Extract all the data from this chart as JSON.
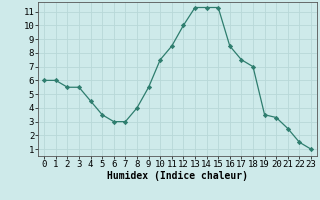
{
  "x": [
    0,
    1,
    2,
    3,
    4,
    5,
    6,
    7,
    8,
    9,
    10,
    11,
    12,
    13,
    14,
    15,
    16,
    17,
    18,
    19,
    20,
    21,
    22,
    23
  ],
  "y": [
    6,
    6,
    5.5,
    5.5,
    4.5,
    3.5,
    3,
    3,
    4,
    5.5,
    7.5,
    8.5,
    10,
    11.3,
    11.3,
    11.3,
    8.5,
    7.5,
    7,
    3.5,
    3.3,
    2.5,
    1.5,
    1
  ],
  "line_color": "#2e7d6e",
  "marker": "D",
  "marker_size": 2.2,
  "bg_color": "#ceeaea",
  "grid_color": "#b8d8d8",
  "xlabel": "Humidex (Indice chaleur)",
  "xlim": [
    -0.5,
    23.5
  ],
  "ylim": [
    0.5,
    11.7
  ],
  "yticks": [
    1,
    2,
    3,
    4,
    5,
    6,
    7,
    8,
    9,
    10,
    11
  ],
  "xticks": [
    0,
    1,
    2,
    3,
    4,
    5,
    6,
    7,
    8,
    9,
    10,
    11,
    12,
    13,
    14,
    15,
    16,
    17,
    18,
    19,
    20,
    21,
    22,
    23
  ],
  "label_fontsize": 7,
  "tick_fontsize": 6.5
}
